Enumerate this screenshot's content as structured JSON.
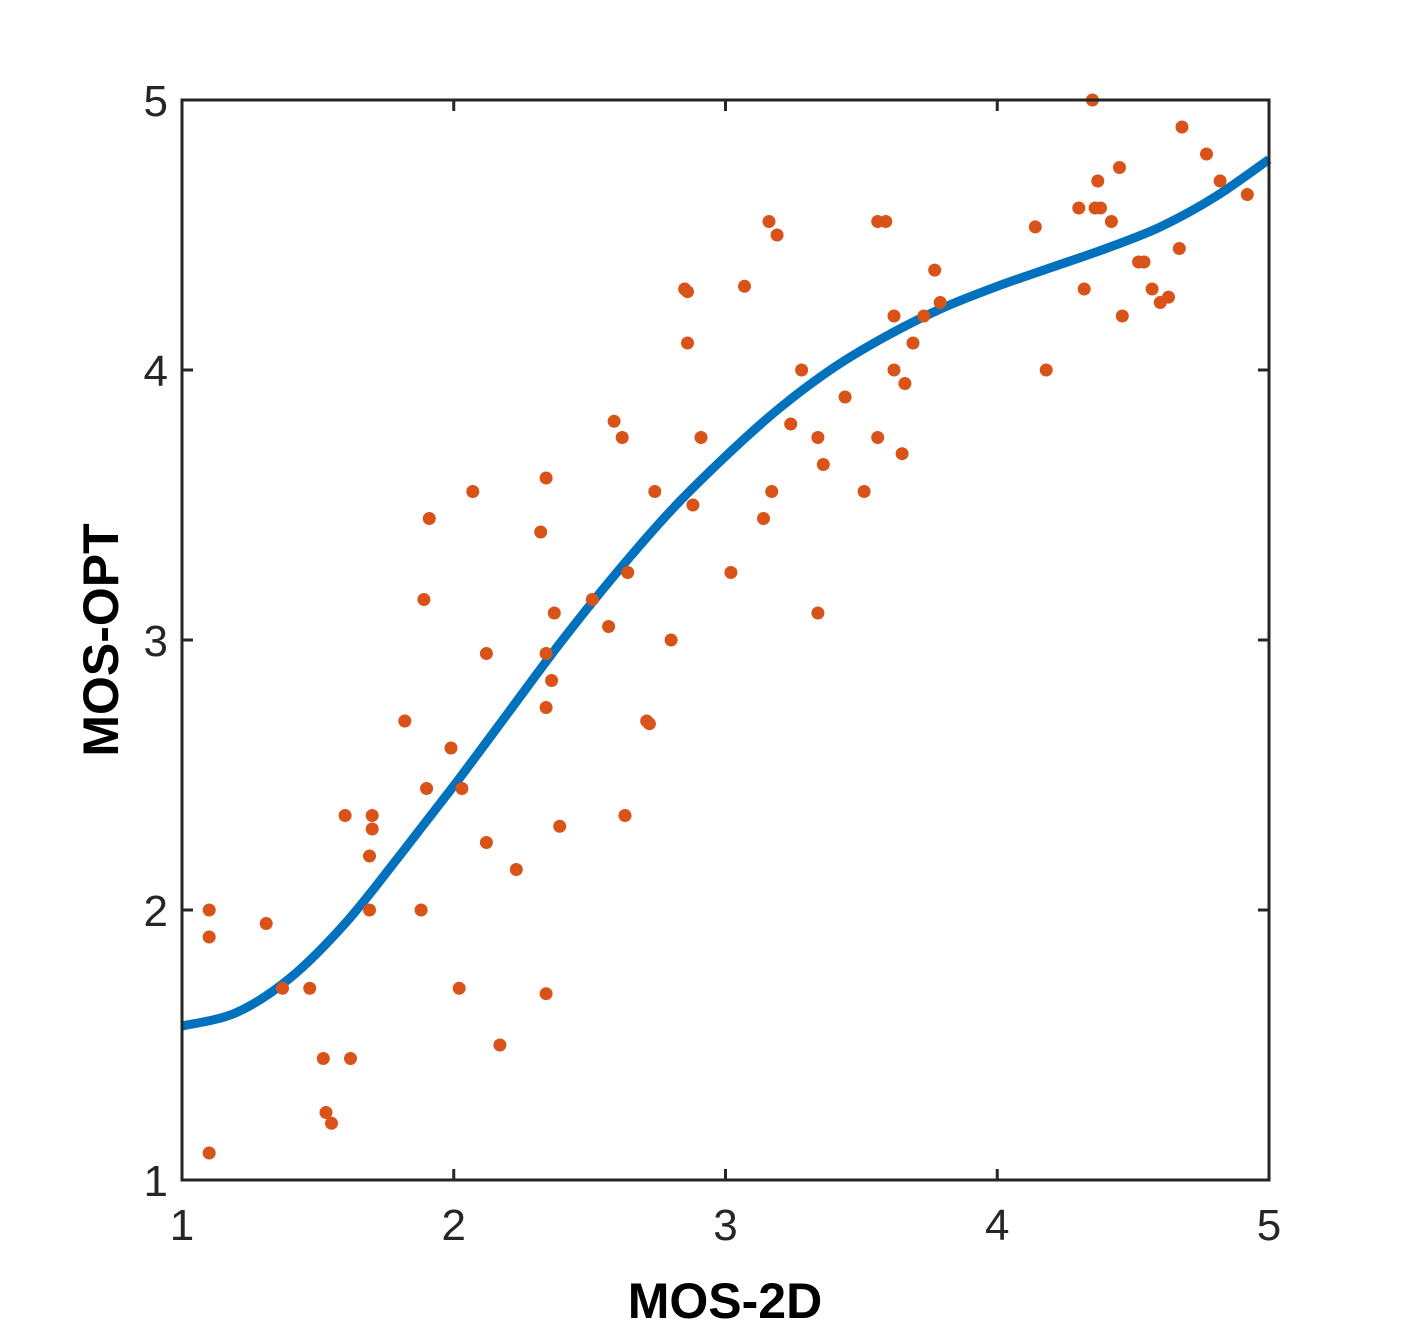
{
  "chart_data": {
    "type": "scatter",
    "title": "",
    "xlabel": "MOS-2D",
    "ylabel": "MOS-OPT",
    "xlim": [
      1,
      5
    ],
    "ylim": [
      1,
      5
    ],
    "xticks": [
      "1",
      "2",
      "3",
      "4",
      "5"
    ],
    "yticks": [
      "1",
      "2",
      "3",
      "4",
      "5"
    ],
    "grid": false,
    "legend": "none",
    "colors": {
      "points": "#D95319",
      "fit": "#0072BD",
      "axes": "#262626"
    },
    "series": [
      {
        "kind": "scatter",
        "points": [
          [
            1.1,
            2.0
          ],
          [
            1.1,
            1.9
          ],
          [
            1.1,
            1.1
          ],
          [
            1.31,
            1.95
          ],
          [
            1.37,
            1.71
          ],
          [
            1.47,
            1.71
          ],
          [
            1.52,
            1.45
          ],
          [
            1.53,
            1.25
          ],
          [
            1.55,
            1.21
          ],
          [
            1.6,
            2.35
          ],
          [
            1.62,
            1.45
          ],
          [
            1.7,
            2.35
          ],
          [
            1.7,
            2.3
          ],
          [
            1.69,
            2.2
          ],
          [
            1.69,
            2.0
          ],
          [
            1.82,
            2.7
          ],
          [
            1.88,
            2.0
          ],
          [
            1.89,
            3.15
          ],
          [
            1.9,
            2.45
          ],
          [
            1.91,
            3.45
          ],
          [
            1.99,
            2.6
          ],
          [
            2.02,
            1.71
          ],
          [
            2.03,
            2.45
          ],
          [
            2.07,
            3.55
          ],
          [
            2.12,
            2.95
          ],
          [
            2.12,
            2.25
          ],
          [
            2.17,
            1.5
          ],
          [
            2.23,
            2.15
          ],
          [
            2.32,
            3.4
          ],
          [
            2.34,
            3.6
          ],
          [
            2.34,
            2.95
          ],
          [
            2.34,
            2.75
          ],
          [
            2.34,
            1.69
          ],
          [
            2.36,
            2.85
          ],
          [
            2.37,
            3.1
          ],
          [
            2.39,
            2.31
          ],
          [
            2.51,
            3.15
          ],
          [
            2.57,
            3.05
          ],
          [
            2.59,
            3.81
          ],
          [
            2.62,
            3.75
          ],
          [
            2.63,
            2.35
          ],
          [
            2.64,
            3.25
          ],
          [
            2.71,
            2.7
          ],
          [
            2.72,
            2.69
          ],
          [
            2.74,
            3.55
          ],
          [
            2.8,
            3.0
          ],
          [
            2.85,
            4.3
          ],
          [
            2.86,
            4.29
          ],
          [
            2.86,
            4.1
          ],
          [
            2.88,
            3.5
          ],
          [
            2.91,
            3.75
          ],
          [
            3.02,
            3.25
          ],
          [
            3.07,
            4.31
          ],
          [
            3.14,
            3.45
          ],
          [
            3.16,
            4.55
          ],
          [
            3.17,
            3.55
          ],
          [
            3.19,
            4.5
          ],
          [
            3.24,
            3.8
          ],
          [
            3.28,
            4.0
          ],
          [
            3.34,
            3.75
          ],
          [
            3.34,
            3.1
          ],
          [
            3.36,
            3.65
          ],
          [
            3.44,
            3.9
          ],
          [
            3.51,
            3.55
          ],
          [
            3.56,
            3.75
          ],
          [
            3.56,
            4.55
          ],
          [
            3.59,
            4.55
          ],
          [
            3.62,
            4.2
          ],
          [
            3.62,
            4.0
          ],
          [
            3.65,
            3.69
          ],
          [
            3.66,
            3.95
          ],
          [
            3.69,
            4.1
          ],
          [
            3.73,
            4.2
          ],
          [
            3.77,
            4.37
          ],
          [
            3.79,
            4.25
          ],
          [
            4.14,
            4.53
          ],
          [
            4.18,
            4.0
          ],
          [
            4.3,
            4.6
          ],
          [
            4.32,
            4.3
          ],
          [
            4.35,
            5.0
          ],
          [
            4.36,
            4.6
          ],
          [
            4.37,
            4.7
          ],
          [
            4.38,
            4.6
          ],
          [
            4.42,
            4.55
          ],
          [
            4.45,
            4.75
          ],
          [
            4.46,
            4.2
          ],
          [
            4.52,
            4.4
          ],
          [
            4.54,
            4.4
          ],
          [
            4.57,
            4.3
          ],
          [
            4.6,
            4.25
          ],
          [
            4.63,
            4.27
          ],
          [
            4.67,
            4.45
          ],
          [
            4.68,
            4.9
          ],
          [
            4.77,
            4.8
          ],
          [
            4.82,
            4.7
          ],
          [
            4.92,
            4.65
          ]
        ]
      },
      {
        "kind": "line",
        "x": [
          1.0,
          1.2,
          1.4,
          1.6,
          1.8,
          2.0,
          2.2,
          2.4,
          2.6,
          2.8,
          3.0,
          3.2,
          3.4,
          3.6,
          3.8,
          4.0,
          4.2,
          4.4,
          4.6,
          4.8,
          5.0
        ],
        "y": [
          1.57,
          1.62,
          1.75,
          1.95,
          2.2,
          2.46,
          2.73,
          3.0,
          3.25,
          3.48,
          3.68,
          3.86,
          4.01,
          4.13,
          4.23,
          4.31,
          4.38,
          4.45,
          4.53,
          4.64,
          4.78
        ]
      }
    ]
  }
}
